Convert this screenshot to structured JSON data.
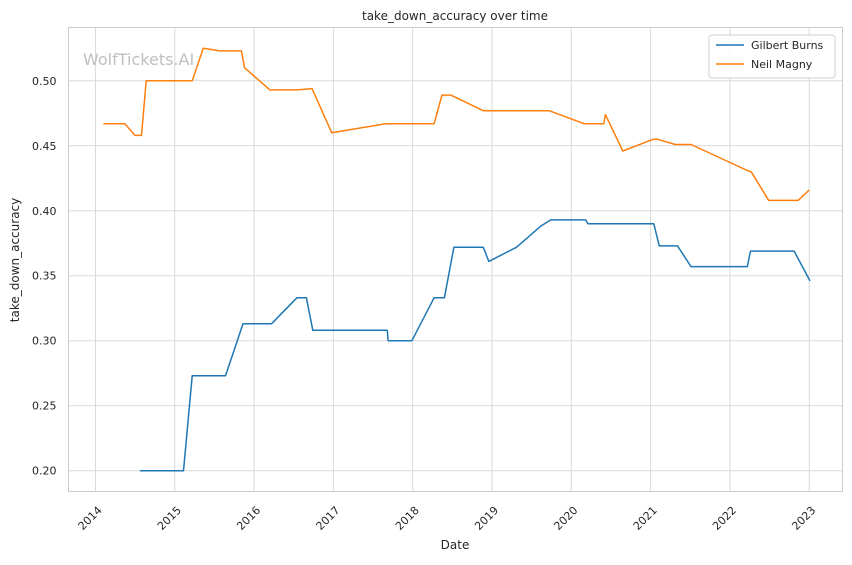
{
  "chart_data": {
    "type": "line",
    "title": "take_down_accuracy over time",
    "xlabel": "Date",
    "ylabel": "take_down_accuracy",
    "watermark": "WolfTickets.AI",
    "xlim": [
      2013.66,
      2023.42
    ],
    "ylim": [
      0.184,
      0.541
    ],
    "x_ticks": [
      2014,
      2015,
      2016,
      2017,
      2018,
      2019,
      2020,
      2021,
      2022,
      2023
    ],
    "x_tick_labels": [
      "2014",
      "2015",
      "2016",
      "2017",
      "2018",
      "2019",
      "2020",
      "2021",
      "2022",
      "2023"
    ],
    "y_ticks": [
      0.2,
      0.25,
      0.3,
      0.35,
      0.4,
      0.45,
      0.5
    ],
    "y_tick_labels": [
      "0.20",
      "0.25",
      "0.30",
      "0.35",
      "0.40",
      "0.45",
      "0.50"
    ],
    "grid": true,
    "legend_position": "top-right",
    "series": [
      {
        "name": "Gilbert Burns",
        "color": "#1f77b4",
        "points": [
          [
            2014.56,
            0.2
          ],
          [
            2015.11,
            0.2
          ],
          [
            2015.22,
            0.273
          ],
          [
            2015.64,
            0.273
          ],
          [
            2015.86,
            0.313
          ],
          [
            2016.22,
            0.313
          ],
          [
            2016.54,
            0.333
          ],
          [
            2016.66,
            0.333
          ],
          [
            2016.74,
            0.308
          ],
          [
            2017.68,
            0.308
          ],
          [
            2017.69,
            0.3
          ],
          [
            2017.99,
            0.3
          ],
          [
            2018.27,
            0.333
          ],
          [
            2018.4,
            0.333
          ],
          [
            2018.52,
            0.372
          ],
          [
            2018.89,
            0.372
          ],
          [
            2018.96,
            0.361
          ],
          [
            2019.31,
            0.372
          ],
          [
            2019.61,
            0.388
          ],
          [
            2019.74,
            0.393
          ],
          [
            2020.18,
            0.393
          ],
          [
            2020.21,
            0.39
          ],
          [
            2021.04,
            0.39
          ],
          [
            2021.11,
            0.373
          ],
          [
            2021.34,
            0.373
          ],
          [
            2021.51,
            0.357
          ],
          [
            2022.22,
            0.357
          ],
          [
            2022.26,
            0.369
          ],
          [
            2022.81,
            0.369
          ],
          [
            2023.01,
            0.346
          ]
        ]
      },
      {
        "name": "Neil Magny",
        "color": "#ff7f0e",
        "points": [
          [
            2014.1,
            0.467
          ],
          [
            2014.37,
            0.467
          ],
          [
            2014.5,
            0.458
          ],
          [
            2014.58,
            0.458
          ],
          [
            2014.64,
            0.5
          ],
          [
            2015.22,
            0.5
          ],
          [
            2015.36,
            0.525
          ],
          [
            2015.57,
            0.523
          ],
          [
            2015.84,
            0.523
          ],
          [
            2015.88,
            0.51
          ],
          [
            2016.2,
            0.493
          ],
          [
            2016.55,
            0.493
          ],
          [
            2016.73,
            0.494
          ],
          [
            2016.98,
            0.46
          ],
          [
            2017.66,
            0.467
          ],
          [
            2018.27,
            0.467
          ],
          [
            2018.37,
            0.489
          ],
          [
            2018.48,
            0.489
          ],
          [
            2018.89,
            0.477
          ],
          [
            2019.72,
            0.477
          ],
          [
            2020.16,
            0.467
          ],
          [
            2020.41,
            0.467
          ],
          [
            2020.43,
            0.474
          ],
          [
            2020.65,
            0.446
          ],
          [
            2021.03,
            0.455
          ],
          [
            2021.09,
            0.455
          ],
          [
            2021.31,
            0.451
          ],
          [
            2021.51,
            0.451
          ],
          [
            2022.22,
            0.431
          ],
          [
            2022.27,
            0.43
          ],
          [
            2022.49,
            0.408
          ],
          [
            2022.86,
            0.408
          ],
          [
            2023.0,
            0.416
          ]
        ]
      }
    ]
  }
}
